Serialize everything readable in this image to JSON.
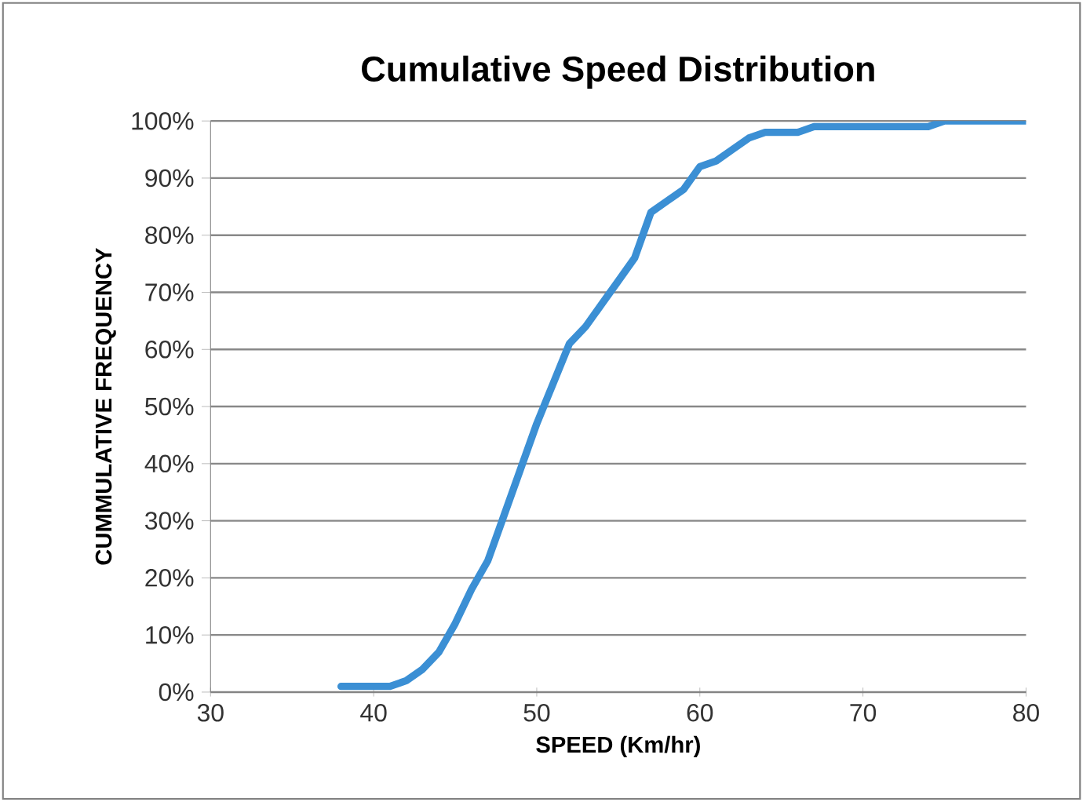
{
  "chart_data": {
    "type": "line",
    "title": "Cumulative Speed Distribution",
    "xlabel": "SPEED (Km/hr)",
    "ylabel": "CUMMULATIVE FREQUENCY",
    "series": [
      {
        "color": "#3b8fd4",
        "x": [
          38,
          41,
          42,
          43,
          44,
          45,
          46,
          47,
          48,
          49,
          50,
          51,
          52,
          53,
          54,
          55,
          56,
          57,
          58,
          59,
          60,
          61,
          62,
          63,
          64,
          65,
          66,
          67,
          70,
          73,
          74,
          75,
          80
        ],
        "values": [
          1,
          1,
          2,
          4,
          7,
          12,
          18,
          23,
          31,
          39,
          47,
          54,
          61,
          64,
          68,
          72,
          76,
          84,
          86,
          88,
          92,
          93,
          95,
          97,
          98,
          98,
          98,
          99,
          99,
          99,
          99,
          100,
          100
        ]
      }
    ],
    "xlim": [
      30,
      80
    ],
    "xticks": [
      30,
      40,
      50,
      60,
      70,
      80
    ],
    "ylim": [
      0,
      100
    ],
    "yticks": [
      {
        "value": 0,
        "label": "0%"
      },
      {
        "value": 10,
        "label": "10%"
      },
      {
        "value": 20,
        "label": "20%"
      },
      {
        "value": 30,
        "label": "30%"
      },
      {
        "value": 40,
        "label": "40%"
      },
      {
        "value": 50,
        "label": "50%"
      },
      {
        "value": 60,
        "label": "60%"
      },
      {
        "value": 70,
        "label": "70%"
      },
      {
        "value": 80,
        "label": "80%"
      },
      {
        "value": 90,
        "label": "90%"
      },
      {
        "value": 100,
        "label": "100%"
      }
    ],
    "grid": "y",
    "marker": "none",
    "line_style": "solid"
  }
}
